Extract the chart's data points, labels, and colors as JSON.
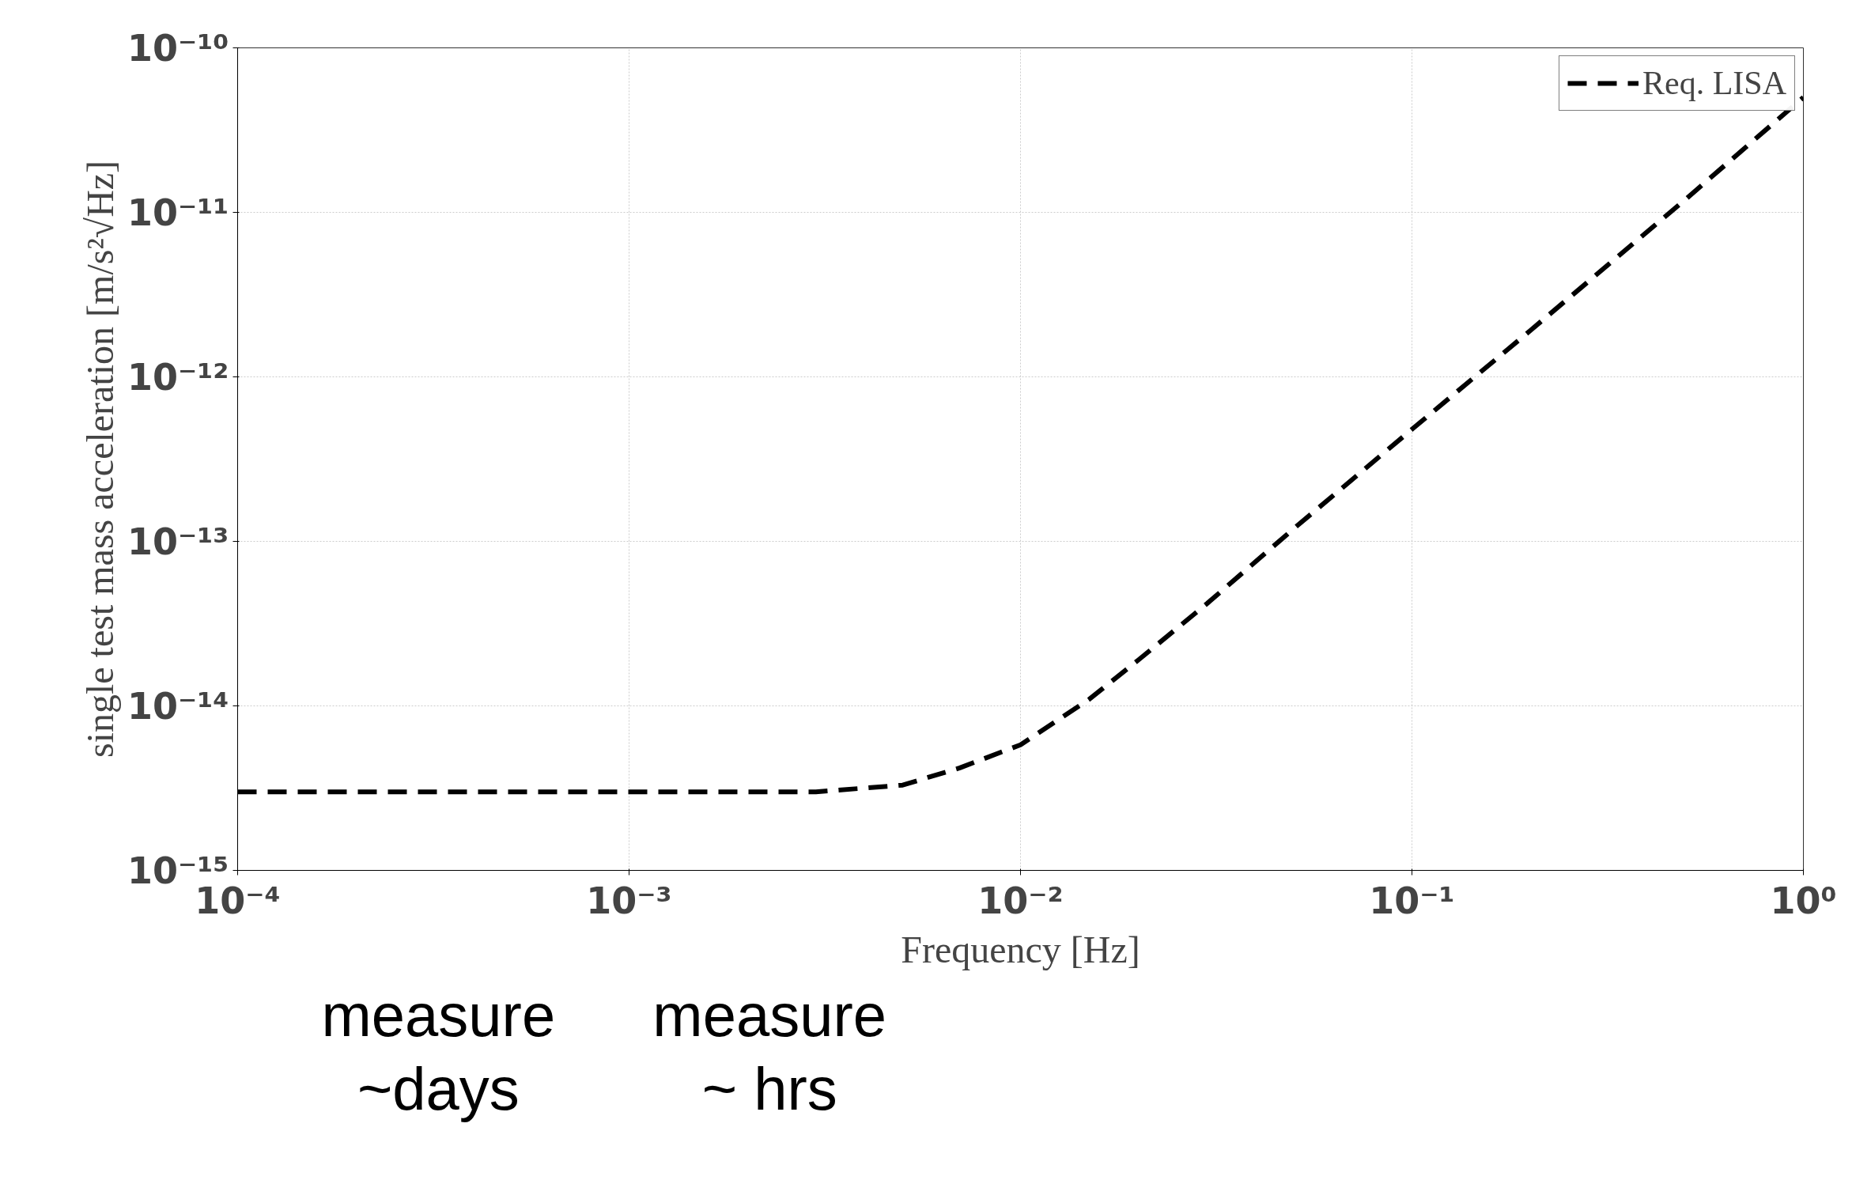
{
  "chart_data": {
    "type": "line",
    "xlabel": "Frequency [Hz]",
    "ylabel": "single test mass acceleration [m/s²√Hz]",
    "x": [
      0.0001,
      0.001,
      0.003,
      0.005,
      0.007,
      0.01,
      0.015,
      0.02,
      0.03,
      0.05,
      0.1,
      0.2,
      0.5,
      1
    ],
    "series": [
      {
        "name": "Req. LISA",
        "color": "#000000",
        "values": [
          3e-15,
          3e-15,
          3e-15,
          3.3e-15,
          4.2e-15,
          5.8e-15,
          1.1e-14,
          1.9e-14,
          4.2e-14,
          1.2e-13,
          4.8e-13,
          1.9e-12,
          1.2e-11,
          5e-11
        ]
      }
    ],
    "log": "xy",
    "xlim": [
      0.0001,
      1
    ],
    "ylim": [
      1e-15,
      1e-10
    ],
    "xticks": [
      {
        "value": 0.0001,
        "label": "10⁻⁴"
      },
      {
        "value": 0.001,
        "label": "10⁻³"
      },
      {
        "value": 0.01,
        "label": "10⁻²"
      },
      {
        "value": 0.1,
        "label": "10⁻¹"
      },
      {
        "value": 1,
        "label": "10⁰"
      }
    ],
    "yticks": [
      {
        "value": 1e-15,
        "label": "10⁻¹⁵"
      },
      {
        "value": 1e-14,
        "label": "10⁻¹⁴"
      },
      {
        "value": 1e-13,
        "label": "10⁻¹³"
      },
      {
        "value": 1e-12,
        "label": "10⁻¹²"
      },
      {
        "value": 1e-11,
        "label": "10⁻¹¹"
      },
      {
        "value": 1e-10,
        "label": "10⁻¹⁰"
      }
    ],
    "grid": true,
    "legend": "top right",
    "line_style": "dashed",
    "marker": "none",
    "annotations": [
      "measure\n~days",
      "measure\n~ hrs"
    ]
  }
}
